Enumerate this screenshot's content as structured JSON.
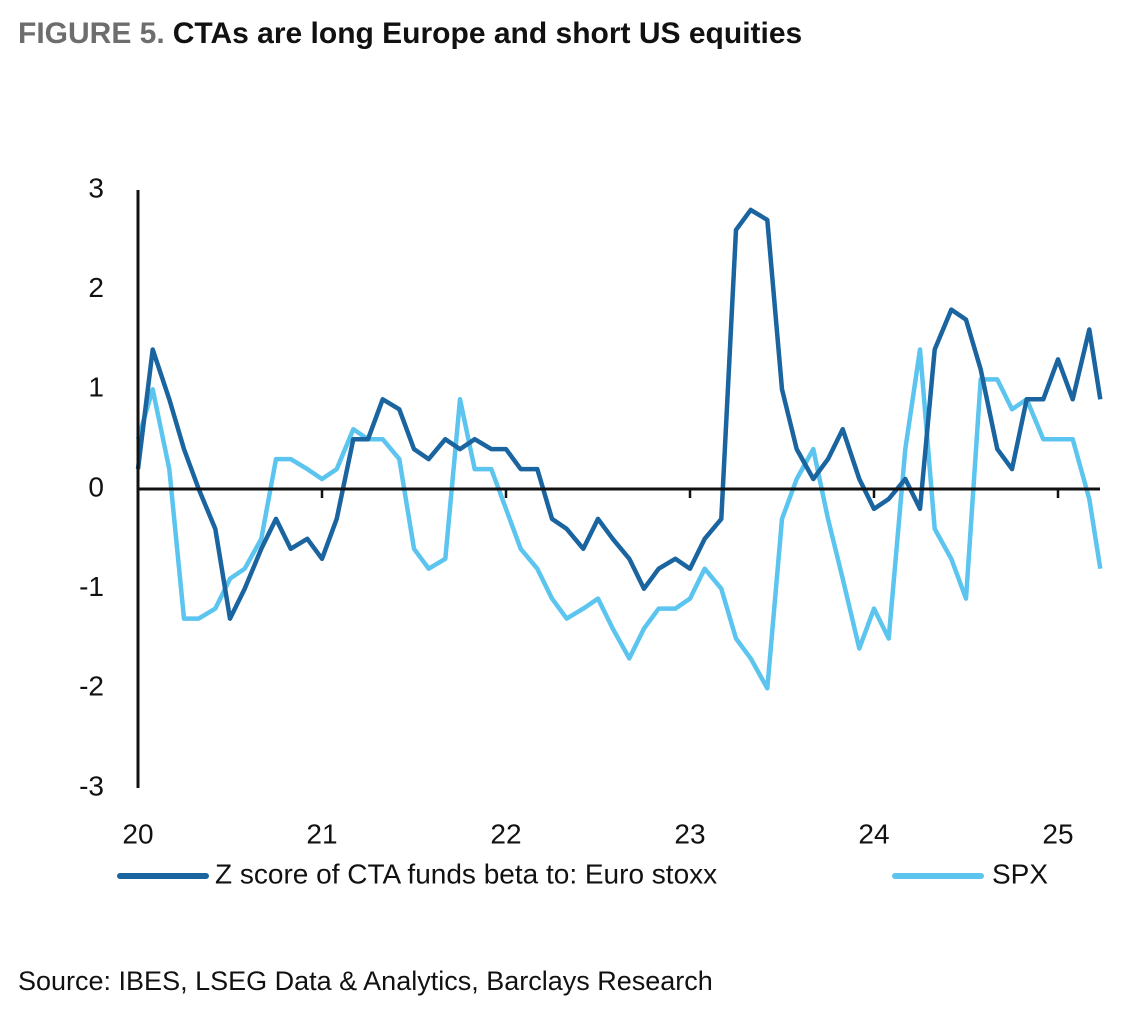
{
  "chart_data": {
    "type": "line",
    "figure_label": "FIGURE 5.",
    "title": "CTAs are long Europe and short US equities",
    "source": "Source: IBES, LSEG Data & Analytics, Barclays Research",
    "x": [
      20.0,
      20.08,
      20.17,
      20.25,
      20.33,
      20.42,
      20.5,
      20.58,
      20.67,
      20.75,
      20.83,
      20.92,
      21.0,
      21.08,
      21.17,
      21.25,
      21.33,
      21.42,
      21.5,
      21.58,
      21.67,
      21.75,
      21.83,
      21.92,
      22.0,
      22.08,
      22.17,
      22.25,
      22.33,
      22.42,
      22.5,
      22.58,
      22.67,
      22.75,
      22.83,
      22.92,
      23.0,
      23.08,
      23.17,
      23.25,
      23.33,
      23.42,
      23.5,
      23.58,
      23.67,
      23.75,
      23.83,
      23.92,
      24.0,
      24.08,
      24.17,
      24.25,
      24.33,
      24.42,
      24.5,
      24.58,
      24.67,
      24.75,
      24.83,
      24.92,
      25.0,
      25.08,
      25.17,
      25.23
    ],
    "series": [
      {
        "name": "Z score of CTA funds beta to: Euro stoxx",
        "color": "#1a64a0",
        "values": [
          0.2,
          1.4,
          0.9,
          0.4,
          0.0,
          -0.4,
          -1.3,
          -1.0,
          -0.6,
          -0.3,
          -0.6,
          -0.5,
          -0.7,
          -0.3,
          0.5,
          0.5,
          0.9,
          0.8,
          0.4,
          0.3,
          0.5,
          0.4,
          0.5,
          0.4,
          0.4,
          0.2,
          0.2,
          -0.3,
          -0.4,
          -0.6,
          -0.3,
          -0.5,
          -0.7,
          -1.0,
          -0.8,
          -0.7,
          -0.8,
          -0.5,
          -0.3,
          2.6,
          2.8,
          2.7,
          1.0,
          0.4,
          0.1,
          0.3,
          0.6,
          0.1,
          -0.2,
          -0.1,
          0.1,
          -0.2,
          1.4,
          1.8,
          1.7,
          1.2,
          0.4,
          0.2,
          0.9,
          0.9,
          1.3,
          0.9,
          1.6,
          0.9
        ]
      },
      {
        "name": "SPX",
        "color": "#5bc4ef",
        "values": [
          0.5,
          1.0,
          0.2,
          -1.3,
          -1.3,
          -1.2,
          -0.9,
          -0.8,
          -0.5,
          0.3,
          0.3,
          0.2,
          0.1,
          0.2,
          0.6,
          0.5,
          0.5,
          0.3,
          -0.6,
          -0.8,
          -0.7,
          0.9,
          0.2,
          0.2,
          -0.2,
          -0.6,
          -0.8,
          -1.1,
          -1.3,
          -1.2,
          -1.1,
          -1.4,
          -1.7,
          -1.4,
          -1.2,
          -1.2,
          -1.1,
          -0.8,
          -1.0,
          -1.5,
          -1.7,
          -2.0,
          -0.3,
          0.1,
          0.4,
          -0.3,
          -0.9,
          -1.6,
          -1.2,
          -1.5,
          0.4,
          1.4,
          -0.4,
          -0.7,
          -1.1,
          1.1,
          1.1,
          0.8,
          0.9,
          0.5,
          0.5,
          0.5,
          -0.1,
          -0.8
        ]
      }
    ],
    "xlim": [
      20,
      25.25
    ],
    "xticks": [
      20,
      21,
      22,
      23,
      24,
      25
    ],
    "ylim": [
      -3,
      3
    ],
    "yticks": [
      -3,
      -2,
      -1,
      0,
      1,
      2,
      3
    ]
  }
}
